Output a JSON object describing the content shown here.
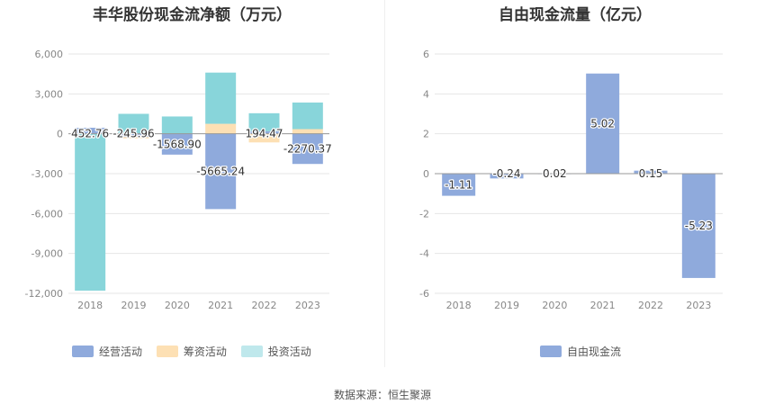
{
  "charts": [
    {
      "title": "丰华股份现金流净额（万元）",
      "legend": [
        {
          "label": "经营活动",
          "color": "#8faadc"
        },
        {
          "label": "筹资活动",
          "color": "#fde0b4"
        },
        {
          "label": "投资活动",
          "color": "#bfe8ec"
        }
      ]
    },
    {
      "title": "自由现金流量（亿元）",
      "legend": [
        {
          "label": "自由现金流",
          "color": "#8faadc"
        }
      ]
    }
  ],
  "source": "数据来源：恒生聚源",
  "chart_data": [
    {
      "type": "bar",
      "stacked": true,
      "title": "丰华股份现金流净额（万元）",
      "categories": [
        "2018",
        "2019",
        "2020",
        "2021",
        "2022",
        "2023"
      ],
      "yticks": [
        "-12,000",
        "-9,000",
        "-6,000",
        "-3,000",
        "0",
        "3,000",
        "6,000"
      ],
      "ylim": [
        -12000,
        6000
      ],
      "series": [
        {
          "name": "经营活动",
          "color": "#8faadc",
          "values": [
            452.76,
            -245.96,
            -1568.9,
            -5665.24,
            194.47,
            -2270.37
          ]
        },
        {
          "name": "筹资活动",
          "color": "#fde0b4",
          "values": [
            0,
            -100,
            0,
            750,
            -650,
            350
          ]
        },
        {
          "name": "投资活动",
          "color": "#88d5da",
          "values": [
            -11800,
            1500,
            1300,
            3850,
            1350,
            2000
          ]
        }
      ],
      "data_labels": [
        "452.76",
        "-245.96",
        "-1568.90",
        "-5665.24",
        "194.47",
        "-2270.37"
      ],
      "grid": true,
      "legend_position": "bottom"
    },
    {
      "type": "bar",
      "title": "自由现金流量（亿元）",
      "categories": [
        "2018",
        "2019",
        "2020",
        "2021",
        "2022",
        "2023"
      ],
      "yticks": [
        "-6",
        "-4",
        "-2",
        "0",
        "2",
        "4",
        "6"
      ],
      "ylim": [
        -6,
        6
      ],
      "series": [
        {
          "name": "自由现金流",
          "color": "#8faadc",
          "values": [
            -1.11,
            -0.24,
            0.02,
            5.02,
            0.15,
            -5.23
          ]
        }
      ],
      "data_labels": [
        "-1.11",
        "-0.24",
        "0.02",
        "5.02",
        "0.15",
        "-5.23"
      ],
      "grid": true,
      "legend_position": "bottom"
    }
  ]
}
